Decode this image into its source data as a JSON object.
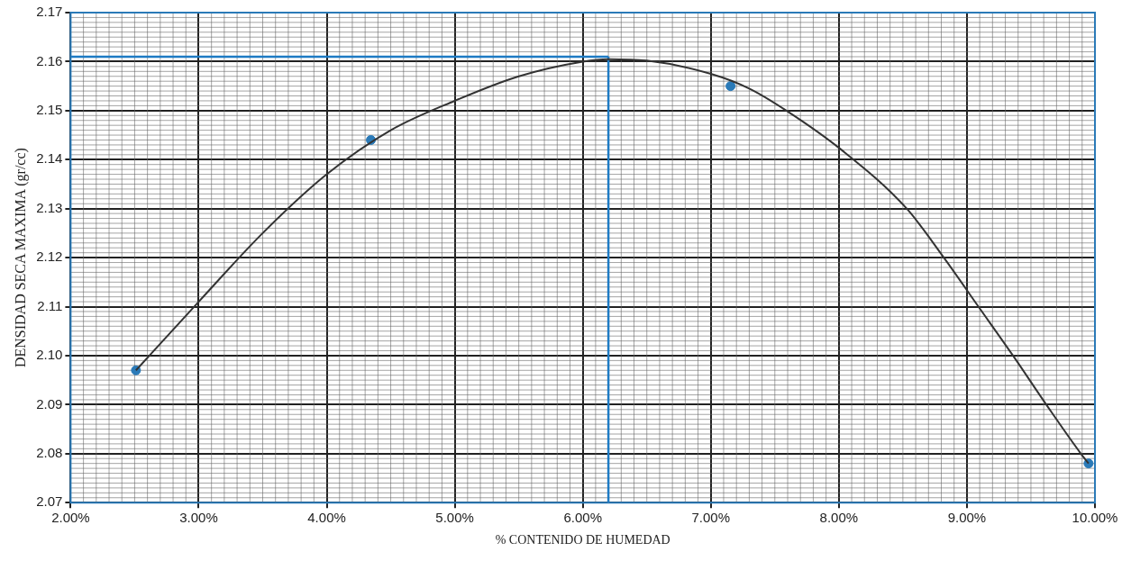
{
  "chart_data": {
    "type": "scatter",
    "xlabel": "% CONTENIDO DE HUMEDAD",
    "ylabel": "DENSIDAD SECA MAXIMA (gr/cc)",
    "xlim": [
      2,
      10
    ],
    "ylim": [
      2.07,
      2.17
    ],
    "xticks": [
      {
        "value": 2,
        "label": "2.00%"
      },
      {
        "value": 3,
        "label": "3.00%"
      },
      {
        "value": 4,
        "label": "4.00%"
      },
      {
        "value": 5,
        "label": "5.00%"
      },
      {
        "value": 6,
        "label": "6.00%"
      },
      {
        "value": 7,
        "label": "7.00%"
      },
      {
        "value": 8,
        "label": "8.00%"
      },
      {
        "value": 9,
        "label": "9.00%"
      },
      {
        "value": 10,
        "label": "10.00%"
      }
    ],
    "yticks": [
      2.07,
      2.08,
      2.09,
      {
        "value": 2.1,
        "label": "2.10"
      },
      2.11,
      2.12,
      2.13,
      2.14,
      2.15,
      2.16,
      2.17
    ],
    "grid": true,
    "legend": false,
    "series": [
      {
        "type": "line",
        "color": "#333333",
        "marker": "none",
        "x": [
          2.51,
          3.0,
          3.5,
          4.0,
          4.5,
          5.0,
          5.5,
          6.0,
          6.2,
          6.5,
          7.0,
          7.3,
          7.59,
          8.02,
          8.53,
          8.82,
          9.09,
          9.36,
          9.62,
          9.89,
          9.95
        ],
        "values": [
          2.097,
          2.111,
          2.125,
          2.137,
          2.146,
          2.152,
          2.157,
          2.16,
          2.1605,
          2.1602,
          2.1575,
          2.1545,
          2.15,
          2.142,
          2.13,
          2.12,
          2.11,
          2.1,
          2.09,
          2.08,
          2.078
        ]
      },
      {
        "color": "#2a7ab8",
        "marker": "circle",
        "x": [
          2.51,
          4.345,
          7.154,
          9.95
        ],
        "values": [
          2.097,
          2.144,
          2.155,
          2.078
        ]
      }
    ],
    "ref_lines": [
      {
        "axis": "y",
        "value": 2.161,
        "color": "#1e7bc4"
      },
      {
        "axis": "x",
        "value": 6.2,
        "color": "#1e7bc4"
      }
    ]
  }
}
